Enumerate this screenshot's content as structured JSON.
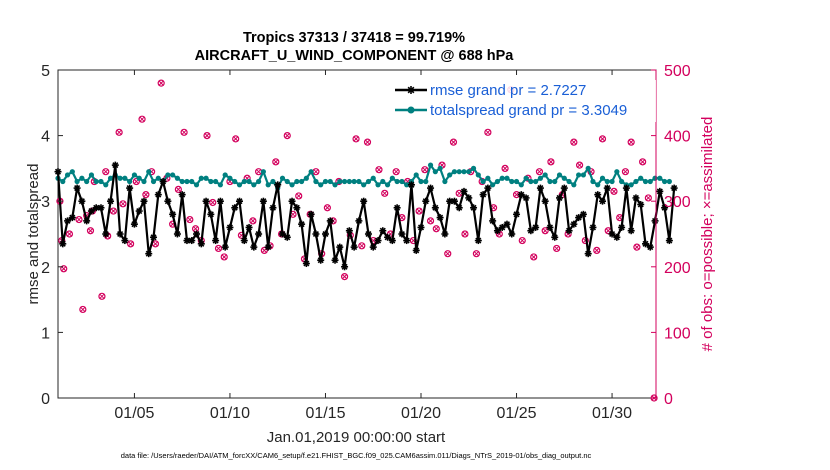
{
  "chart_data": {
    "type": "line",
    "title": "Tropics 37313 / 37418 = 99.719%",
    "subtitle": "AIRCRAFT_U_WIND_COMPONENT @ 688 hPa",
    "xlabel": "Jan.01,2019 00:00:00 start",
    "ylabel": "rmse and totalspread",
    "y2label": "# of obs: o=possible; ×=assimilated",
    "xlim": [
      1,
      32.3
    ],
    "ylim": [
      0,
      5
    ],
    "y2lim": [
      0,
      500
    ],
    "x_tick_values": [
      5,
      10,
      15,
      20,
      25,
      30
    ],
    "x_tick_labels": [
      "01/05",
      "01/10",
      "01/15",
      "01/20",
      "01/25",
      "01/30"
    ],
    "y_ticks": [
      0,
      1,
      2,
      3,
      4,
      5
    ],
    "y2_ticks": [
      0,
      100,
      200,
      300,
      400,
      500
    ],
    "grid": false,
    "legend": [
      {
        "label": "rmse grand pr = 2.7227",
        "color": "#000000",
        "marker": "star"
      },
      {
        "label": "totalspread grand pr = 3.3049",
        "color": "#008080",
        "marker": "circle"
      }
    ],
    "footer": "data file: /Users/raeder/DAI/ATM_forcXX/CAM6_setup/f.e21.FHIST_BGC.f09_025.CAM6assim.011/Diags_NTrS_2019-01/obs_diag_output.nc",
    "series": [
      {
        "name": "rmse",
        "color": "#000000",
        "axis": "left",
        "x_start": 1.0,
        "x_step": 0.25,
        "values": [
          3.45,
          2.35,
          2.7,
          2.75,
          3.2,
          3.0,
          2.7,
          2.85,
          2.9,
          2.9,
          2.5,
          3.0,
          3.55,
          2.5,
          2.4,
          3.2,
          2.65,
          2.85,
          3.0,
          2.2,
          2.45,
          3.1,
          3.3,
          3.0,
          2.8,
          2.5,
          3.1,
          2.4,
          2.4,
          2.5,
          2.35,
          3.0,
          2.8,
          2.4,
          3.0,
          2.3,
          2.6,
          2.9,
          3.0,
          2.4,
          2.6,
          2.3,
          2.5,
          3.0,
          2.3,
          2.9,
          3.25,
          2.5,
          2.45,
          3.0,
          2.9,
          2.65,
          2.05,
          2.8,
          2.5,
          2.1,
          2.5,
          2.7,
          2.1,
          2.3,
          2.0,
          2.55,
          2.3,
          2.7,
          3.0,
          2.5,
          2.3,
          2.4,
          2.55,
          2.45,
          2.4,
          2.9,
          2.5,
          2.4,
          3.25,
          2.25,
          2.6,
          3.0,
          3.2,
          2.9,
          2.75,
          2.5,
          3.0,
          3.0,
          2.9,
          3.15,
          3.05,
          2.9,
          2.4,
          3.1,
          3.2,
          2.7,
          2.55,
          2.6,
          2.65,
          2.5,
          2.8,
          3.1,
          3.05,
          2.55,
          2.6,
          3.2,
          3.0,
          2.6,
          2.45,
          3.05,
          3.2,
          2.55,
          2.65,
          2.75,
          2.8,
          2.2,
          2.6,
          3.1,
          3.0,
          3.2,
          2.5,
          2.45,
          2.6,
          3.2,
          2.55,
          3.05,
          2.95,
          2.35,
          2.3,
          2.7,
          3.15,
          2.9,
          2.4,
          3.2
        ]
      },
      {
        "name": "totalspread",
        "color": "#008080",
        "axis": "left",
        "x_start": 1.0,
        "x_step": 0.25,
        "values": [
          3.35,
          3.3,
          3.4,
          3.45,
          3.3,
          3.35,
          3.3,
          3.4,
          3.3,
          3.3,
          3.25,
          3.35,
          3.4,
          3.35,
          3.35,
          3.3,
          3.4,
          3.35,
          3.3,
          3.45,
          3.3,
          3.35,
          3.3,
          3.4,
          3.4,
          3.35,
          3.3,
          3.3,
          3.3,
          3.25,
          3.35,
          3.35,
          3.3,
          3.3,
          3.25,
          3.4,
          3.35,
          3.3,
          3.25,
          3.3,
          3.3,
          3.25,
          3.3,
          3.45,
          3.25,
          3.3,
          3.2,
          3.35,
          3.3,
          3.25,
          3.3,
          3.3,
          3.35,
          3.45,
          3.3,
          3.25,
          3.3,
          3.3,
          3.25,
          3.3,
          3.3,
          3.3,
          3.3,
          3.3,
          3.25,
          3.3,
          3.35,
          3.25,
          3.3,
          3.25,
          3.35,
          3.3,
          3.3,
          3.25,
          3.3,
          3.4,
          3.3,
          3.3,
          3.55,
          3.45,
          3.5,
          3.3,
          3.4,
          3.45,
          3.45,
          3.45,
          3.45,
          3.5,
          3.4,
          3.3,
          3.35,
          3.25,
          3.3,
          3.35,
          3.35,
          3.3,
          3.3,
          3.25,
          3.35,
          3.3,
          3.3,
          3.35,
          3.4,
          3.3,
          3.3,
          3.4,
          3.35,
          3.3,
          3.25,
          3.4,
          3.4,
          3.5,
          3.3,
          3.25,
          3.35,
          3.3,
          3.3,
          3.45,
          3.3,
          3.25,
          3.25,
          3.3,
          3.35,
          3.3,
          3.3,
          3.35,
          3.35,
          3.3,
          3.3
        ]
      },
      {
        "name": "obs possible / assimilated",
        "color": "#d3005d",
        "axis": "right",
        "points": [
          [
            1.1,
            300
          ],
          [
            1.2,
            240
          ],
          [
            1.3,
            197
          ],
          [
            1.6,
            250
          ],
          [
            2.1,
            272
          ],
          [
            2.3,
            135
          ],
          [
            2.5,
            278
          ],
          [
            2.7,
            255
          ],
          [
            2.8,
            285
          ],
          [
            2.9,
            330
          ],
          [
            3.3,
            155
          ],
          [
            3.5,
            345
          ],
          [
            3.6,
            247
          ],
          [
            3.9,
            285
          ],
          [
            4.2,
            405
          ],
          [
            4.4,
            296
          ],
          [
            4.8,
            235
          ],
          [
            5.1,
            330
          ],
          [
            5.4,
            425
          ],
          [
            5.6,
            310
          ],
          [
            5.9,
            345
          ],
          [
            6.1,
            235
          ],
          [
            6.4,
            480
          ],
          [
            6.7,
            335
          ],
          [
            7.0,
            265
          ],
          [
            7.3,
            318
          ],
          [
            7.6,
            405
          ],
          [
            7.9,
            272
          ],
          [
            8.2,
            258
          ],
          [
            8.5,
            240
          ],
          [
            8.8,
            400
          ],
          [
            9.1,
            298
          ],
          [
            9.4,
            228
          ],
          [
            9.7,
            215
          ],
          [
            10.0,
            330
          ],
          [
            10.3,
            395
          ],
          [
            10.6,
            248
          ],
          [
            10.9,
            335
          ],
          [
            11.2,
            270
          ],
          [
            11.5,
            345
          ],
          [
            11.8,
            225
          ],
          [
            12.1,
            232
          ],
          [
            12.4,
            360
          ],
          [
            12.7,
            250
          ],
          [
            13.0,
            400
          ],
          [
            13.3,
            280
          ],
          [
            13.6,
            308
          ],
          [
            13.9,
            212
          ],
          [
            14.2,
            280
          ],
          [
            14.5,
            345
          ],
          [
            14.8,
            220
          ],
          [
            15.1,
            290
          ],
          [
            15.4,
            270
          ],
          [
            15.7,
            330
          ],
          [
            16.0,
            185
          ],
          [
            16.3,
            248
          ],
          [
            16.6,
            395
          ],
          [
            16.9,
            232
          ],
          [
            17.2,
            390
          ],
          [
            17.5,
            240
          ],
          [
            17.8,
            348
          ],
          [
            18.1,
            312
          ],
          [
            18.4,
            250
          ],
          [
            18.7,
            345
          ],
          [
            19.0,
            275
          ],
          [
            19.3,
            330
          ],
          [
            19.6,
            240
          ],
          [
            19.9,
            285
          ],
          [
            20.2,
            348
          ],
          [
            20.5,
            270
          ],
          [
            20.8,
            258
          ],
          [
            21.1,
            355
          ],
          [
            21.4,
            220
          ],
          [
            21.7,
            390
          ],
          [
            22.0,
            312
          ],
          [
            22.3,
            250
          ],
          [
            22.6,
            345
          ],
          [
            22.9,
            220
          ],
          [
            23.2,
            330
          ],
          [
            23.5,
            405
          ],
          [
            23.8,
            290
          ],
          [
            24.1,
            250
          ],
          [
            24.4,
            350
          ],
          [
            24.7,
            470
          ],
          [
            25.0,
            310
          ],
          [
            25.3,
            240
          ],
          [
            25.6,
            335
          ],
          [
            25.9,
            215
          ],
          [
            26.2,
            345
          ],
          [
            26.5,
            255
          ],
          [
            26.8,
            360
          ],
          [
            27.1,
            228
          ],
          [
            27.4,
            310
          ],
          [
            27.7,
            250
          ],
          [
            28.0,
            390
          ],
          [
            28.3,
            355
          ],
          [
            28.6,
            240
          ],
          [
            28.9,
            345
          ],
          [
            29.2,
            225
          ],
          [
            29.5,
            395
          ],
          [
            29.8,
            255
          ],
          [
            30.1,
            315
          ],
          [
            30.4,
            275
          ],
          [
            30.7,
            345
          ],
          [
            31.0,
            390
          ],
          [
            31.3,
            230
          ],
          [
            31.6,
            360
          ],
          [
            31.9,
            305
          ],
          [
            32.2,
            0
          ]
        ]
      }
    ]
  }
}
